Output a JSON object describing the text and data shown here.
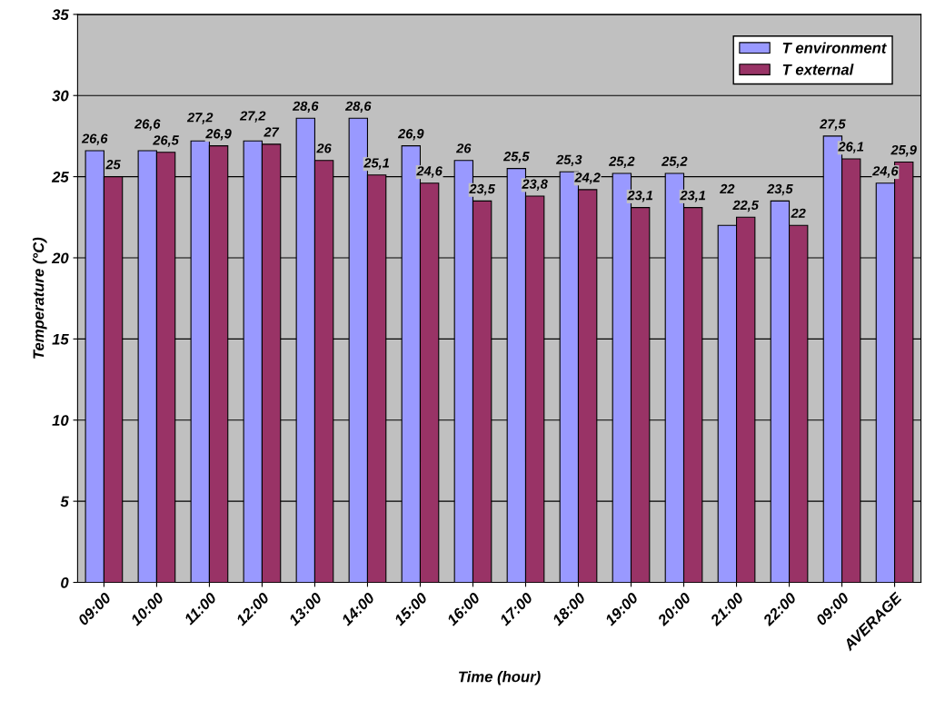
{
  "chart_data": {
    "type": "bar",
    "xlabel": "Time (hour)",
    "ylabel": "Temperature (°C)",
    "categories": [
      "09:00",
      "10:00",
      "11:00",
      "12:00",
      "13:00",
      "14:00",
      "15:00",
      "16:00",
      "17:00",
      "18:00",
      "19:00",
      "20:00",
      "21:00",
      "22:00",
      "09:00",
      "AVERAGE"
    ],
    "series": [
      {
        "name": "T environment",
        "color": "#9999ff",
        "values": [
          26.6,
          26.6,
          27.2,
          27.2,
          28.6,
          28.6,
          26.9,
          26,
          25.5,
          25.3,
          25.2,
          25.2,
          22,
          23.5,
          27.5,
          24.6
        ],
        "value_labels": [
          "26,6",
          "26,6",
          "27,2",
          "27,2",
          "28,6",
          "28,6",
          "26,9",
          "26",
          "25,5",
          "25,3",
          "25,2",
          "25,2",
          "22",
          "23,5",
          "27,5",
          "24,6"
        ]
      },
      {
        "name": "T external",
        "color": "#993366",
        "values": [
          25,
          26.5,
          26.9,
          27,
          26,
          25.1,
          24.6,
          23.5,
          23.8,
          24.2,
          23.1,
          23.1,
          22.5,
          22,
          26.1,
          25.9
        ],
        "value_labels": [
          "25",
          "26,5",
          "26,9",
          "27",
          "26",
          "25,1",
          "24,6",
          "23,5",
          "23,8",
          "24,2",
          "23,1",
          "23,1",
          "22,5",
          "22",
          "26,1",
          "25,9"
        ]
      }
    ],
    "ylim": [
      0,
      35
    ],
    "yticks": [
      0,
      5,
      10,
      15,
      20,
      25,
      30,
      35
    ],
    "grid": "y",
    "legend": "top right"
  }
}
